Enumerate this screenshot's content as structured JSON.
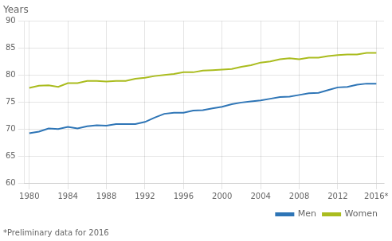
{
  "chart_data": {
    "type": "line",
    "ylabel": "Years",
    "footnote": "*Preliminary data for 2016",
    "x": [
      1980,
      1981,
      1982,
      1983,
      1984,
      1985,
      1986,
      1987,
      1988,
      1989,
      1990,
      1991,
      1992,
      1993,
      1994,
      1995,
      1996,
      1997,
      1998,
      1999,
      2000,
      2001,
      2002,
      2003,
      2004,
      2005,
      2006,
      2007,
      2008,
      2009,
      2010,
      2011,
      2012,
      2013,
      2014,
      2015,
      2016
    ],
    "series": [
      {
        "name": "Men",
        "color": "#2E75B6",
        "values": [
          69.2,
          69.5,
          70.1,
          70.0,
          70.4,
          70.1,
          70.5,
          70.7,
          70.6,
          70.9,
          70.9,
          70.9,
          71.3,
          72.1,
          72.8,
          73.0,
          73.0,
          73.4,
          73.5,
          73.8,
          74.1,
          74.6,
          74.9,
          75.1,
          75.3,
          75.6,
          75.9,
          76.0,
          76.3,
          76.6,
          76.7,
          77.2,
          77.7,
          77.8,
          78.2,
          78.4,
          78.4
        ]
      },
      {
        "name": "Women",
        "color": "#AABC1E",
        "values": [
          77.6,
          78.0,
          78.1,
          77.8,
          78.5,
          78.5,
          78.9,
          78.9,
          78.8,
          78.9,
          78.9,
          79.3,
          79.5,
          79.8,
          80.0,
          80.2,
          80.5,
          80.5,
          80.8,
          80.9,
          81.0,
          81.1,
          81.5,
          81.8,
          82.3,
          82.5,
          82.9,
          83.1,
          82.9,
          83.2,
          83.2,
          83.5,
          83.7,
          83.8,
          83.8,
          84.1,
          84.1
        ]
      }
    ],
    "xlim": [
      1979.5,
      2016.8
    ],
    "xticks": [
      1980,
      1984,
      1988,
      1992,
      1996,
      2000,
      2004,
      2008,
      2012,
      {
        "value": 2016,
        "label": "2016*"
      }
    ],
    "ylim": [
      60,
      90
    ],
    "yticks": [
      60,
      65,
      70,
      75,
      80,
      85,
      90
    ],
    "grid": true,
    "legend": "lower right"
  }
}
